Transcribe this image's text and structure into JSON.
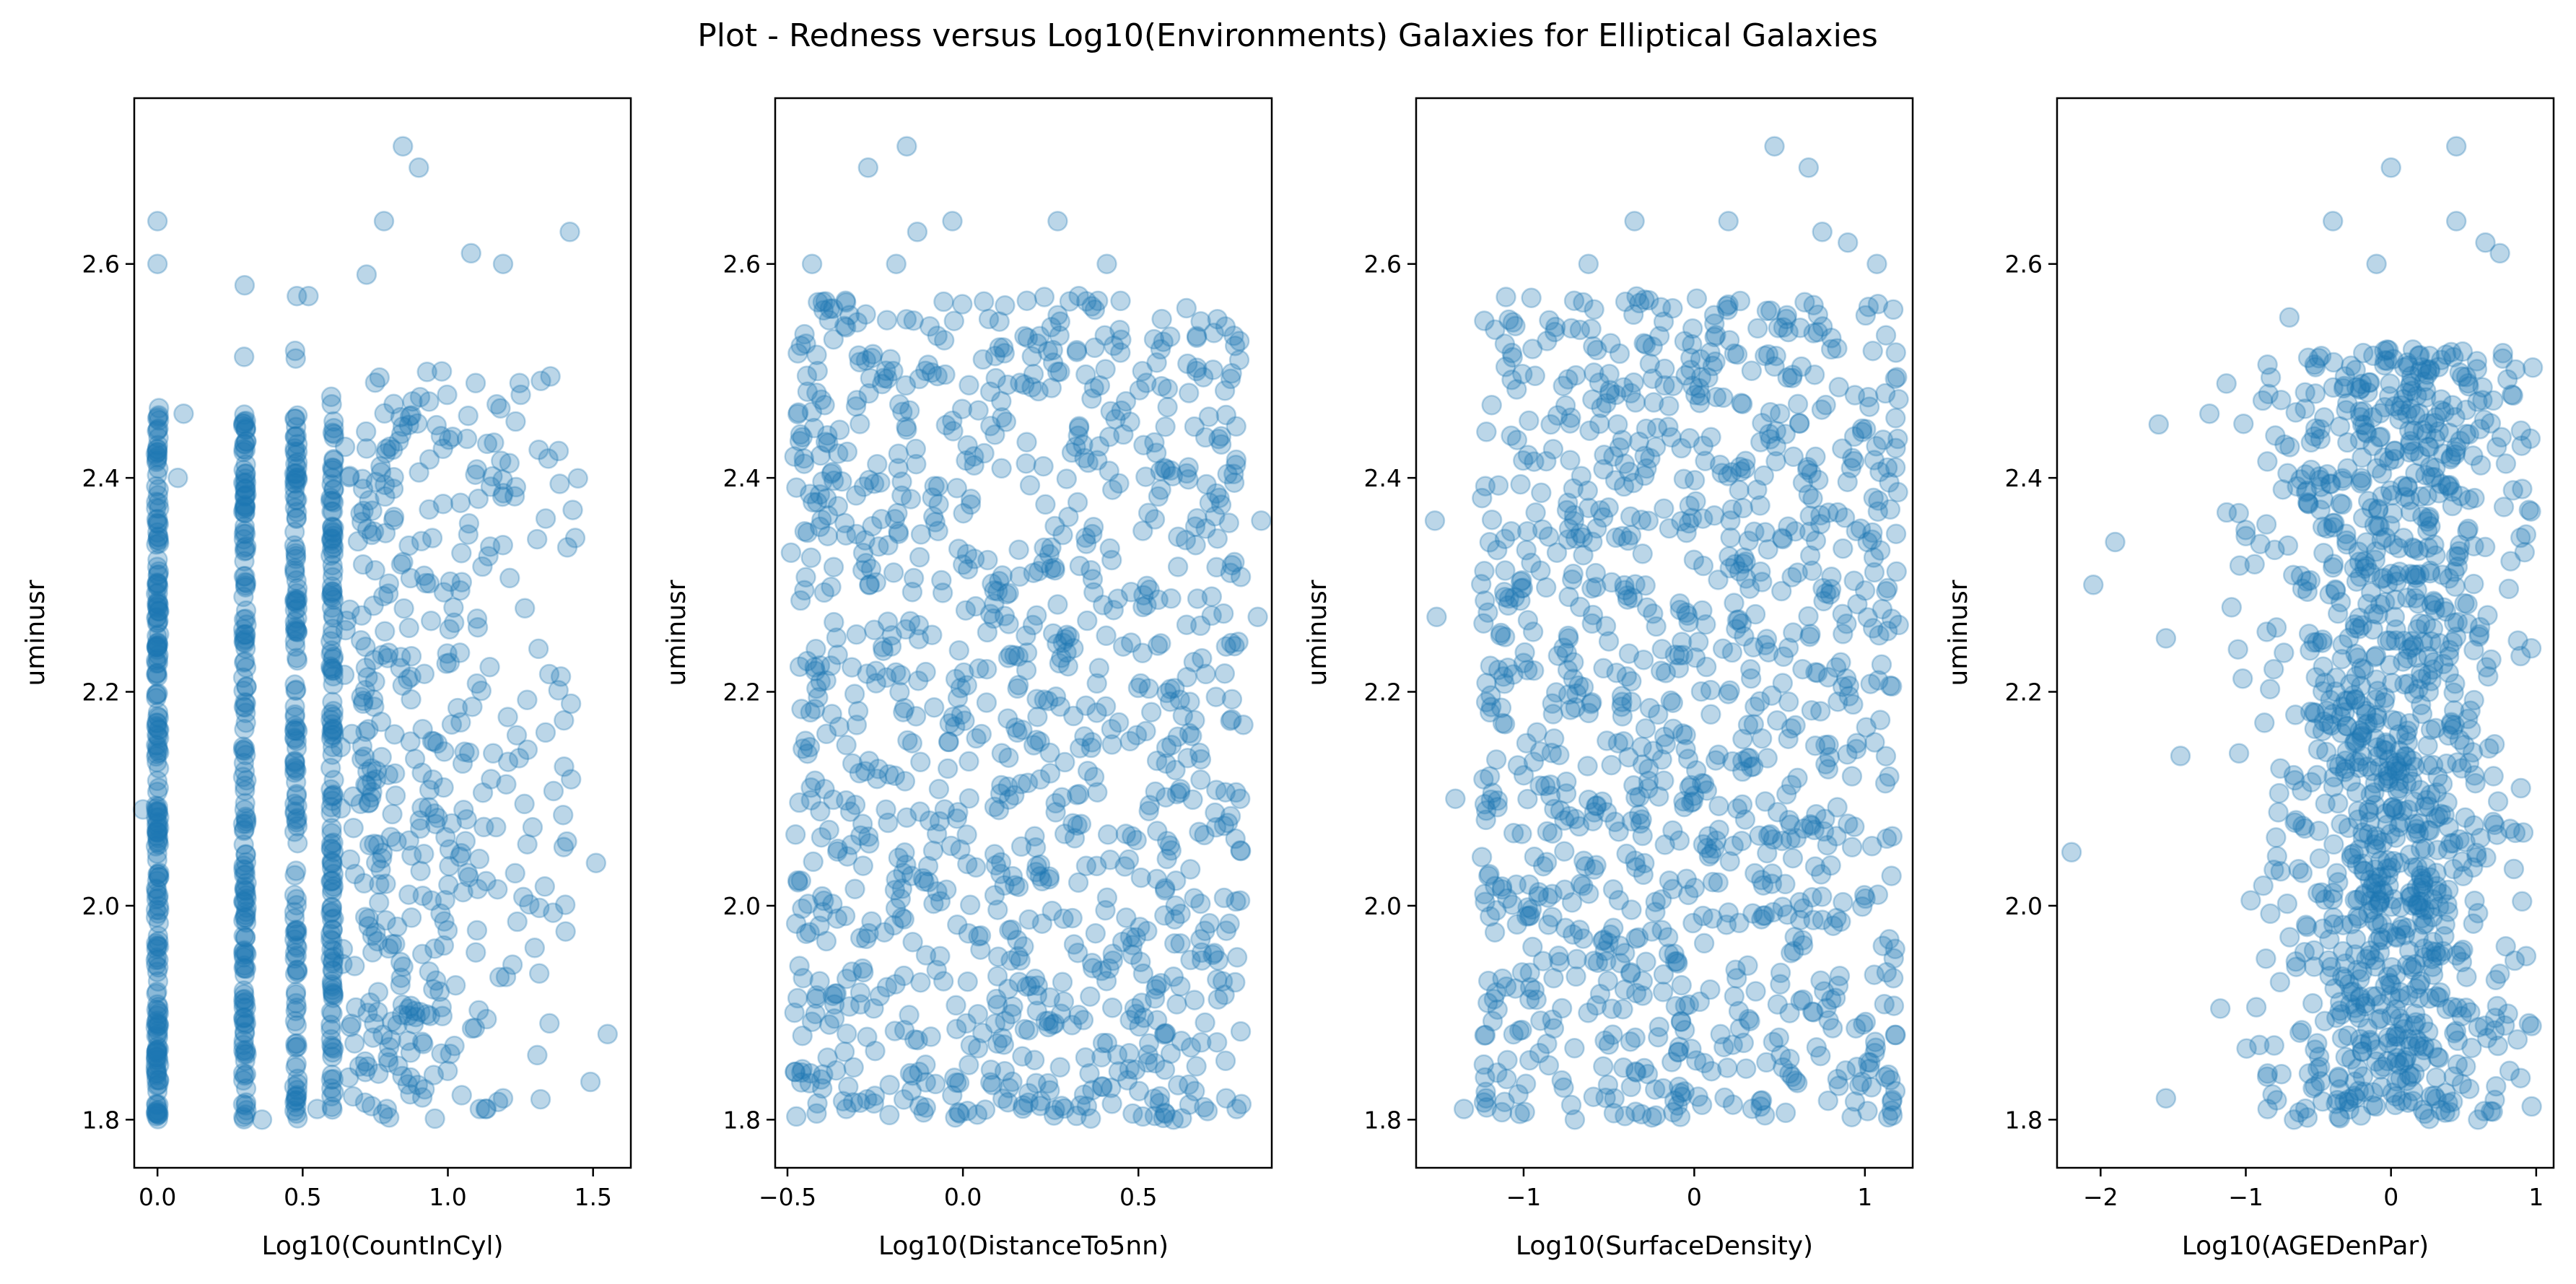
{
  "title": "Plot - Redness versus Log10(Environments) Galaxies  for Elliptical Galaxies",
  "marker_color": "#1f77b4",
  "marker_alpha": 0.3,
  "chart_data": [
    {
      "type": "scatter",
      "xlabel": "Log10(CountInCyl)",
      "ylabel": "uminusr",
      "xlim": [
        -0.08,
        1.63
      ],
      "ylim": [
        1.755,
        2.755
      ],
      "xticks": [
        0.0,
        0.5,
        1.0,
        1.5
      ],
      "xtick_labels": [
        "0.0",
        "0.5",
        "1.0",
        "1.5"
      ],
      "yticks": [
        1.8,
        2.0,
        2.2,
        2.4,
        2.6
      ],
      "ytick_labels": [
        "1.8",
        "2.0",
        "2.2",
        "2.4",
        "2.6"
      ],
      "x_columns": [
        0.0,
        0.301,
        0.477,
        0.602
      ],
      "x_spread": [
        0.7,
        1.55
      ],
      "points": [
        [
          0.845,
          2.71
        ],
        [
          0.9,
          2.69
        ],
        [
          1.42,
          2.63
        ],
        [
          0.78,
          2.64
        ],
        [
          1.08,
          2.61
        ],
        [
          1.19,
          2.6
        ],
        [
          0.72,
          2.59
        ],
        [
          0.0,
          2.64
        ],
        [
          0.0,
          2.6
        ],
        [
          0.07,
          2.4
        ],
        [
          1.55,
          1.88
        ],
        [
          1.41,
          2.06
        ],
        [
          1.4,
          2.13
        ],
        [
          1.43,
          2.37
        ],
        [
          1.35,
          1.89
        ],
        [
          -0.05,
          2.09
        ],
        [
          0.09,
          2.46
        ],
        [
          0.36,
          1.8
        ],
        [
          0.48,
          2.57
        ],
        [
          0.52,
          2.57
        ],
        [
          0.55,
          1.81
        ],
        [
          1.11,
          1.81
        ],
        [
          1.13,
          1.81
        ],
        [
          1.19,
          1.82
        ],
        [
          0.79,
          1.81
        ],
        [
          0.3,
          2.58
        ]
      ],
      "seed": 11
    },
    {
      "type": "scatter",
      "xlabel": "Log10(DistanceTo5nn)",
      "ylabel": "uminusr",
      "xlim": [
        -0.535,
        0.88
      ],
      "ylim": [
        1.755,
        2.755
      ],
      "xticks": [
        -0.5,
        0.0,
        0.5
      ],
      "xtick_labels": [
        "−0.5",
        "0.0",
        "0.5"
      ],
      "yticks": [
        1.8,
        2.0,
        2.2,
        2.4,
        2.6
      ],
      "ytick_labels": [
        "1.8",
        "2.0",
        "2.2",
        "2.4",
        "2.6"
      ],
      "x_spread": [
        -0.48,
        0.8
      ],
      "points": [
        [
          -0.16,
          2.71
        ],
        [
          -0.27,
          2.69
        ],
        [
          -0.03,
          2.64
        ],
        [
          0.27,
          2.64
        ],
        [
          -0.19,
          2.6
        ],
        [
          -0.43,
          2.6
        ],
        [
          -0.13,
          2.63
        ],
        [
          0.85,
          2.36
        ],
        [
          0.84,
          2.27
        ],
        [
          0.79,
          2.1
        ],
        [
          -0.49,
          2.33
        ],
        [
          -0.48,
          2.42
        ],
        [
          0.78,
          1.81
        ],
        [
          0.75,
          1.82
        ],
        [
          0.6,
          1.8
        ],
        [
          -0.48,
          1.9
        ],
        [
          0.41,
          2.6
        ],
        [
          0.33,
          2.57
        ]
      ],
      "seed": 23
    },
    {
      "type": "scatter",
      "xlabel": "Log10(SurfaceDensity)",
      "ylabel": "uminusr",
      "xlim": [
        -1.63,
        1.28
      ],
      "ylim": [
        1.755,
        2.755
      ],
      "xticks": [
        -1.0,
        0.0,
        1.0
      ],
      "xtick_labels": [
        "−1",
        "0",
        "1"
      ],
      "yticks": [
        1.8,
        2.0,
        2.2,
        2.4,
        2.6
      ],
      "ytick_labels": [
        "1.8",
        "2.0",
        "2.2",
        "2.4",
        "2.6"
      ],
      "x_spread": [
        -1.25,
        1.2
      ],
      "points": [
        [
          0.47,
          2.71
        ],
        [
          0.67,
          2.69
        ],
        [
          -0.35,
          2.64
        ],
        [
          0.2,
          2.64
        ],
        [
          1.07,
          2.6
        ],
        [
          0.75,
          2.63
        ],
        [
          -0.62,
          2.6
        ],
        [
          -1.52,
          2.36
        ],
        [
          -1.51,
          2.27
        ],
        [
          -1.4,
          2.1
        ],
        [
          -1.35,
          1.81
        ],
        [
          -1.22,
          1.82
        ],
        [
          1.12,
          1.84
        ],
        [
          -0.7,
          1.8
        ],
        [
          0.9,
          2.62
        ]
      ],
      "seed": 37
    },
    {
      "type": "scatter",
      "xlabel": "Log10(AGEDenPar)",
      "ylabel": "uminusr",
      "xlim": [
        -2.3,
        1.12
      ],
      "ylim": [
        1.755,
        2.755
      ],
      "xticks": [
        -2.0,
        -1.0,
        0.0,
        1.0
      ],
      "xtick_labels": [
        "−2",
        "−1",
        "0",
        "1"
      ],
      "yticks": [
        1.8,
        2.0,
        2.2,
        2.4,
        2.6
      ],
      "ytick_labels": [
        "1.8",
        "2.0",
        "2.2",
        "2.4",
        "2.6"
      ],
      "x_center": 0.0,
      "x_sigma": 0.42,
      "points": [
        [
          0.45,
          2.71
        ],
        [
          0.0,
          2.69
        ],
        [
          -0.4,
          2.64
        ],
        [
          0.45,
          2.64
        ],
        [
          0.65,
          2.62
        ],
        [
          0.75,
          2.61
        ],
        [
          -2.2,
          2.05
        ],
        [
          -2.05,
          2.3
        ],
        [
          -1.9,
          2.34
        ],
        [
          -1.55,
          1.82
        ],
        [
          -1.6,
          2.45
        ],
        [
          -1.55,
          2.25
        ],
        [
          -1.45,
          2.14
        ],
        [
          -1.25,
          2.46
        ],
        [
          -0.85,
          1.81
        ],
        [
          0.6,
          1.8
        ],
        [
          0.9,
          2.43
        ],
        [
          0.95,
          2.37
        ],
        [
          0.95,
          1.89
        ],
        [
          -0.1,
          2.6
        ],
        [
          -0.7,
          2.55
        ]
      ],
      "seed": 51
    }
  ]
}
